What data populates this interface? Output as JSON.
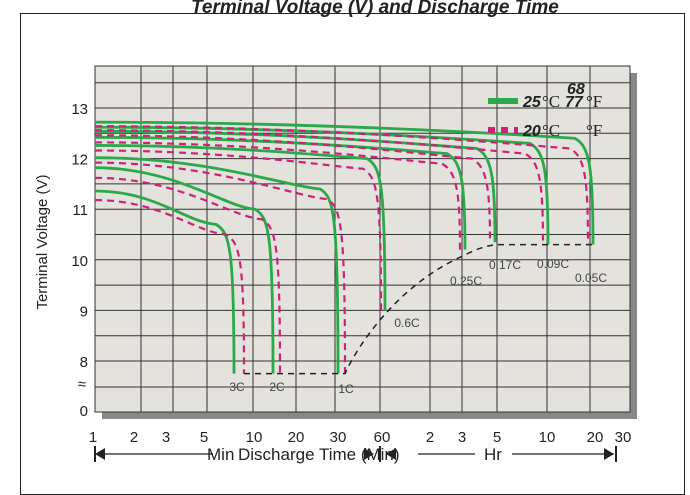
{
  "title": "Terminal Voltage (V) and Discharge Time",
  "chart_data": {
    "type": "line",
    "ylabel": "Terminal Voltage (V)",
    "xlabel": "Discharge Time (Min)",
    "ylim": [
      7.5,
      13.9
    ],
    "y_ticks": [
      8,
      9,
      10,
      11,
      12,
      13
    ],
    "y_break_label": "0",
    "y_break_symbol": "≈",
    "x_scale": "log",
    "x_ticks_min": [
      "1",
      "2",
      "3",
      "5",
      "10",
      "20",
      "30",
      "60"
    ],
    "x_ticks_hr": [
      "2",
      "3",
      "5",
      "10",
      "20",
      "30"
    ],
    "x_range_labels": {
      "min": "Min",
      "hr": "Hr"
    },
    "grid": true,
    "legend": [
      {
        "temp_c": "25",
        "unit_c": "°C",
        "temp_f": "77",
        "unit_f": "°F",
        "style": "solid",
        "color": "#2aa84a"
      },
      {
        "temp_c": "20",
        "unit_c": "°C",
        "temp_f": "68",
        "unit_f": "°F",
        "style": "dashed",
        "color": "#cc2277"
      }
    ],
    "curve_labels": [
      "3C",
      "2C",
      "1C",
      "0.6C",
      "0.25C",
      "0.17C",
      "0.09C",
      "0.05C"
    ],
    "cutoff_line": {
      "style": "dashed",
      "color": "#222"
    }
  }
}
